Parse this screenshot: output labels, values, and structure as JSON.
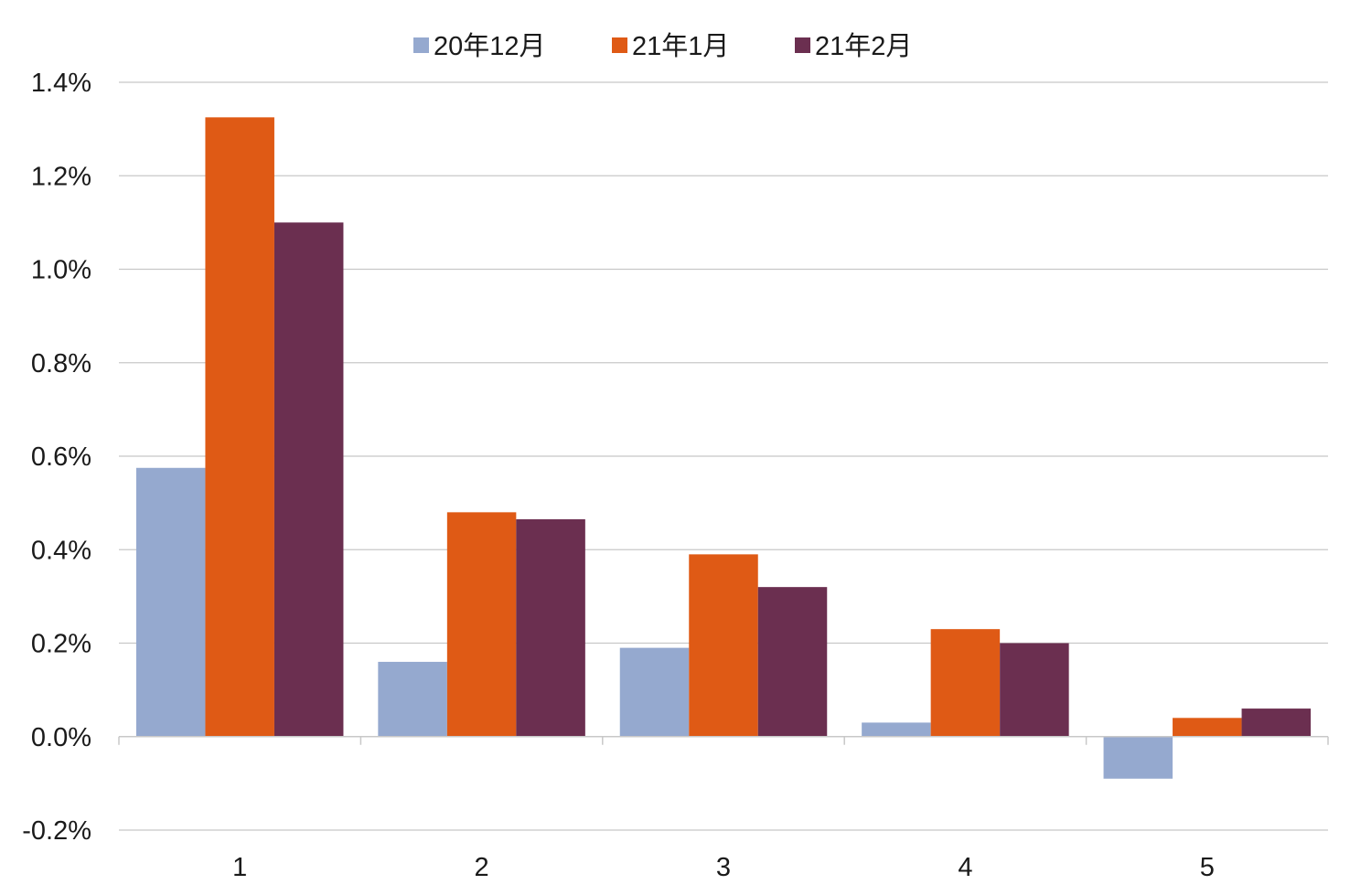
{
  "chart_data": {
    "type": "bar",
    "categories": [
      "1",
      "2",
      "3",
      "4",
      "5"
    ],
    "series": [
      {
        "name": "20年12月",
        "color": "#95a9cf",
        "values": [
          0.575,
          0.16,
          0.19,
          0.03,
          -0.09
        ]
      },
      {
        "name": "21年1月",
        "color": "#df5a15",
        "values": [
          1.325,
          0.48,
          0.39,
          0.23,
          0.04
        ]
      },
      {
        "name": "21年2月",
        "color": "#6b2f50",
        "values": [
          1.1,
          0.465,
          0.32,
          0.2,
          0.06
        ]
      }
    ],
    "yticks": [
      "-0.2%",
      "0.0%",
      "0.2%",
      "0.4%",
      "0.6%",
      "0.8%",
      "1.0%",
      "1.2%",
      "1.4%"
    ],
    "ytick_values": [
      -0.2,
      0,
      0.2,
      0.4,
      0.6,
      0.8,
      1.0,
      1.2,
      1.4
    ],
    "ylim": [
      -0.2,
      1.4
    ],
    "title": "",
    "xlabel": "",
    "ylabel": "",
    "grid": true,
    "legend_position": "top"
  }
}
